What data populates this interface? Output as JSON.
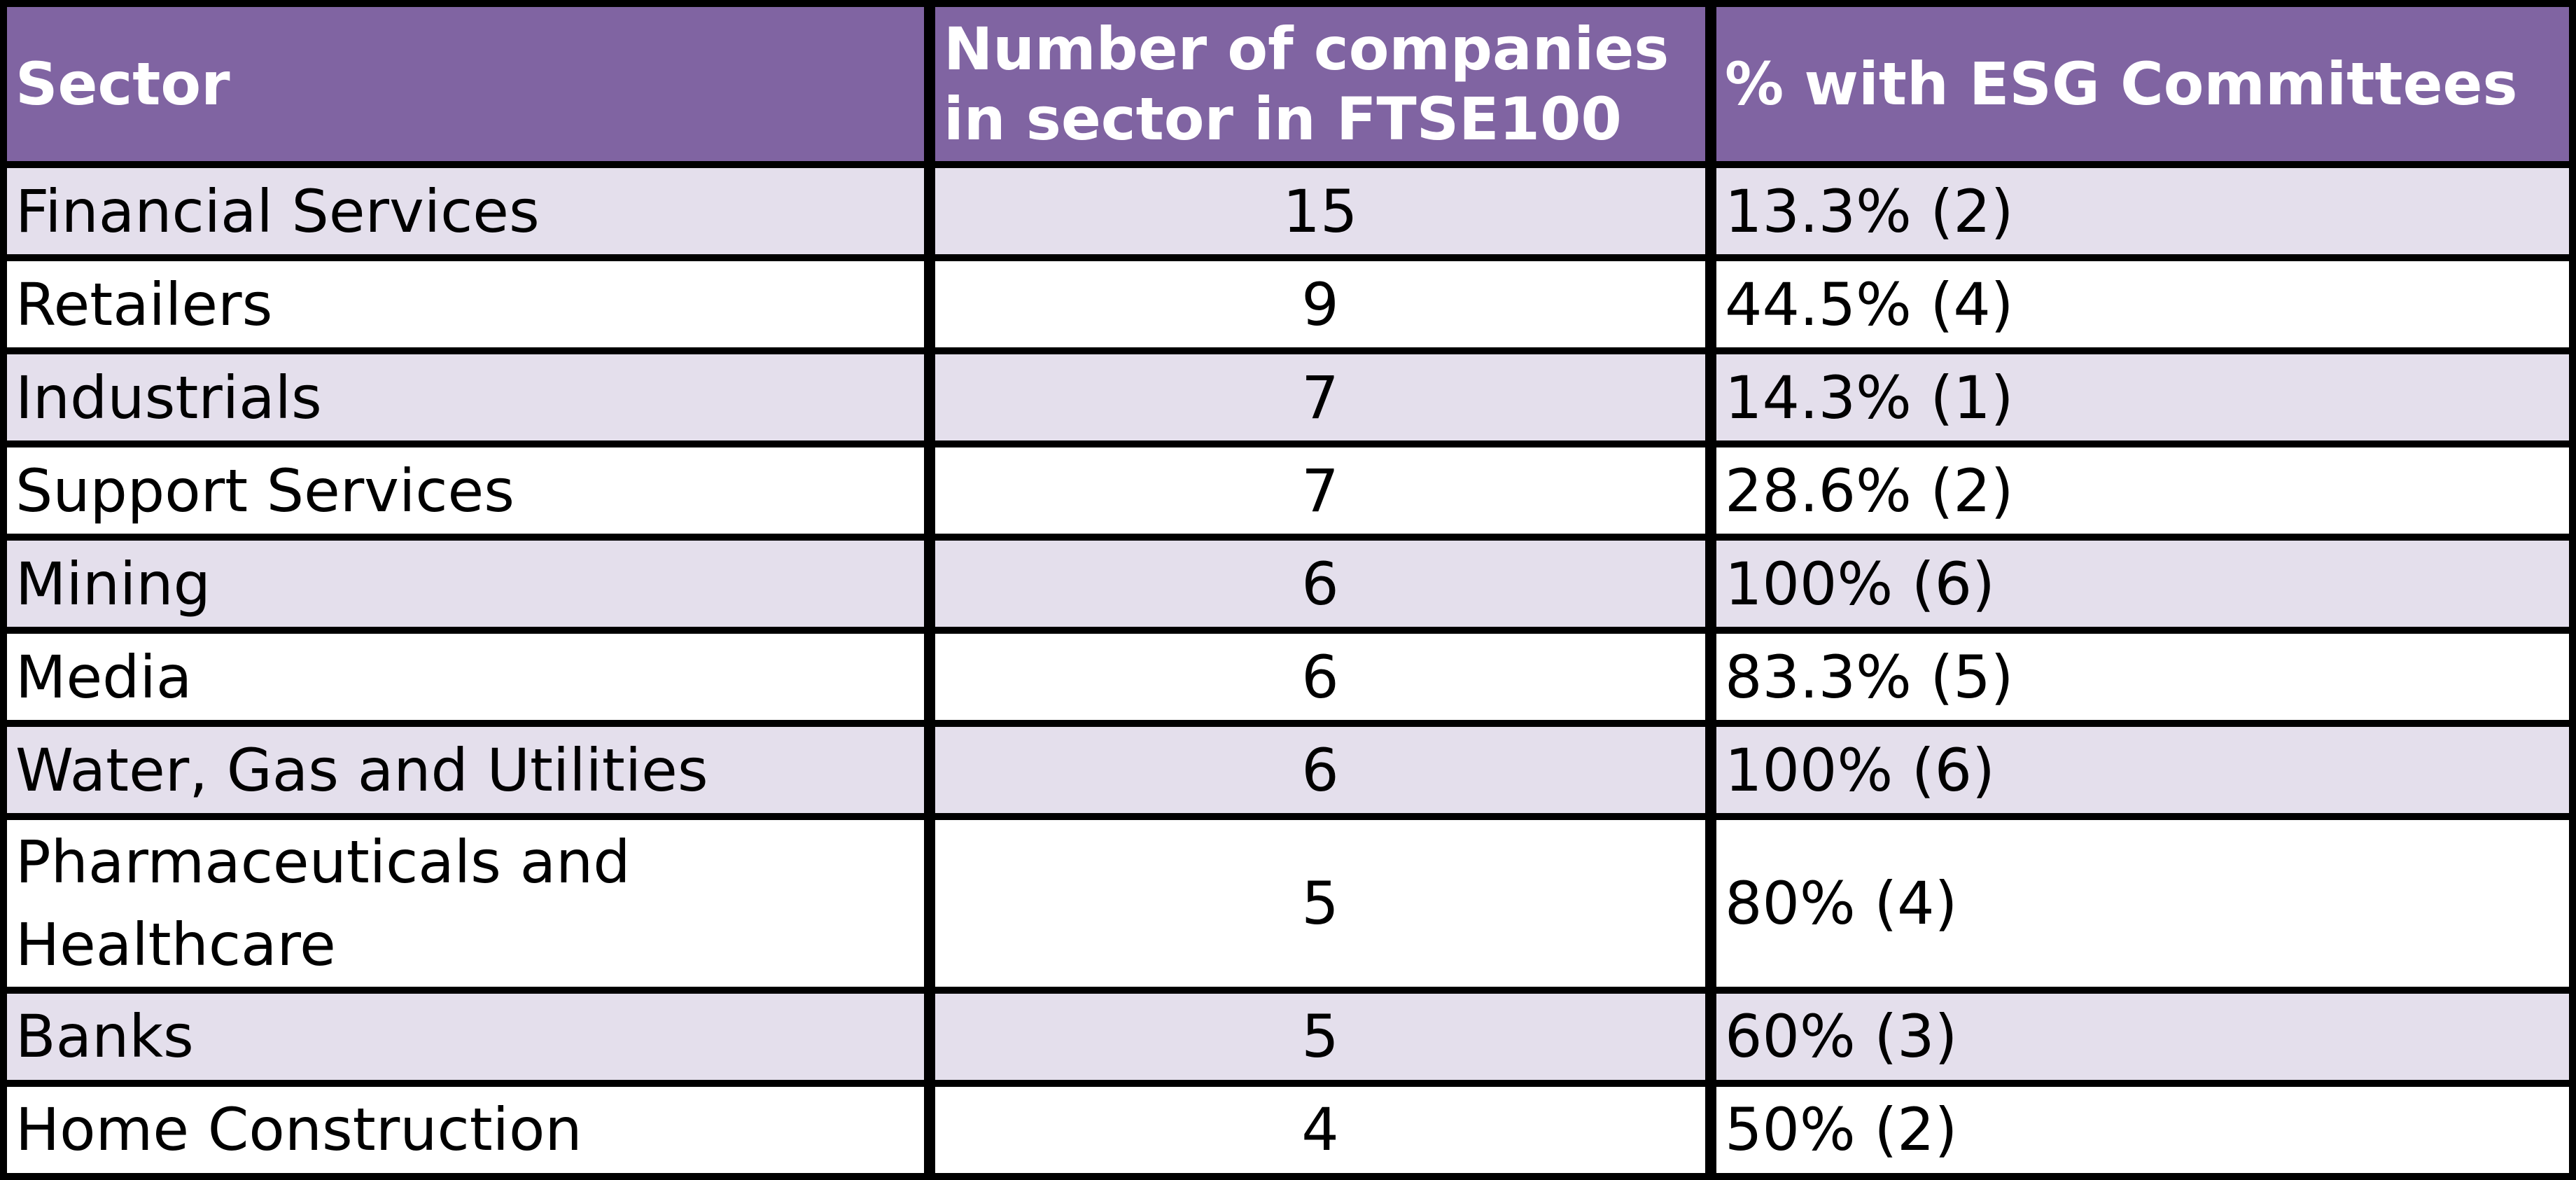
{
  "table": {
    "headers": [
      "Sector",
      "Number of companies in sector in FTSE100",
      "% with ESG Committees"
    ],
    "rows": [
      {
        "sector": "Financial Services",
        "count": "15",
        "pct": "13.3% (2)"
      },
      {
        "sector": "Retailers",
        "count": "9",
        "pct": "44.5% (4)"
      },
      {
        "sector": "Industrials",
        "count": "7",
        "pct": "14.3% (1)"
      },
      {
        "sector": "Support Services",
        "count": "7",
        "pct": "28.6% (2)"
      },
      {
        "sector": "Mining",
        "count": "6",
        "pct": "100% (6)"
      },
      {
        "sector": "Media",
        "count": "6",
        "pct": "83.3% (5)"
      },
      {
        "sector": "Water, Gas and Utilities",
        "count": "6",
        "pct": "100% (6)"
      },
      {
        "sector": "Pharmaceuticals and Healthcare",
        "count": "5",
        "pct": "80% (4)"
      },
      {
        "sector": "Banks",
        "count": "5",
        "pct": "60% (3)"
      },
      {
        "sector": "Home Construction",
        "count": "4",
        "pct": "50% (2)"
      }
    ]
  },
  "colors": {
    "header_bg": "#8064a2",
    "header_text": "#ffffff",
    "band_bg": "#e4dfec",
    "plain_bg": "#ffffff",
    "border": "#000000"
  }
}
